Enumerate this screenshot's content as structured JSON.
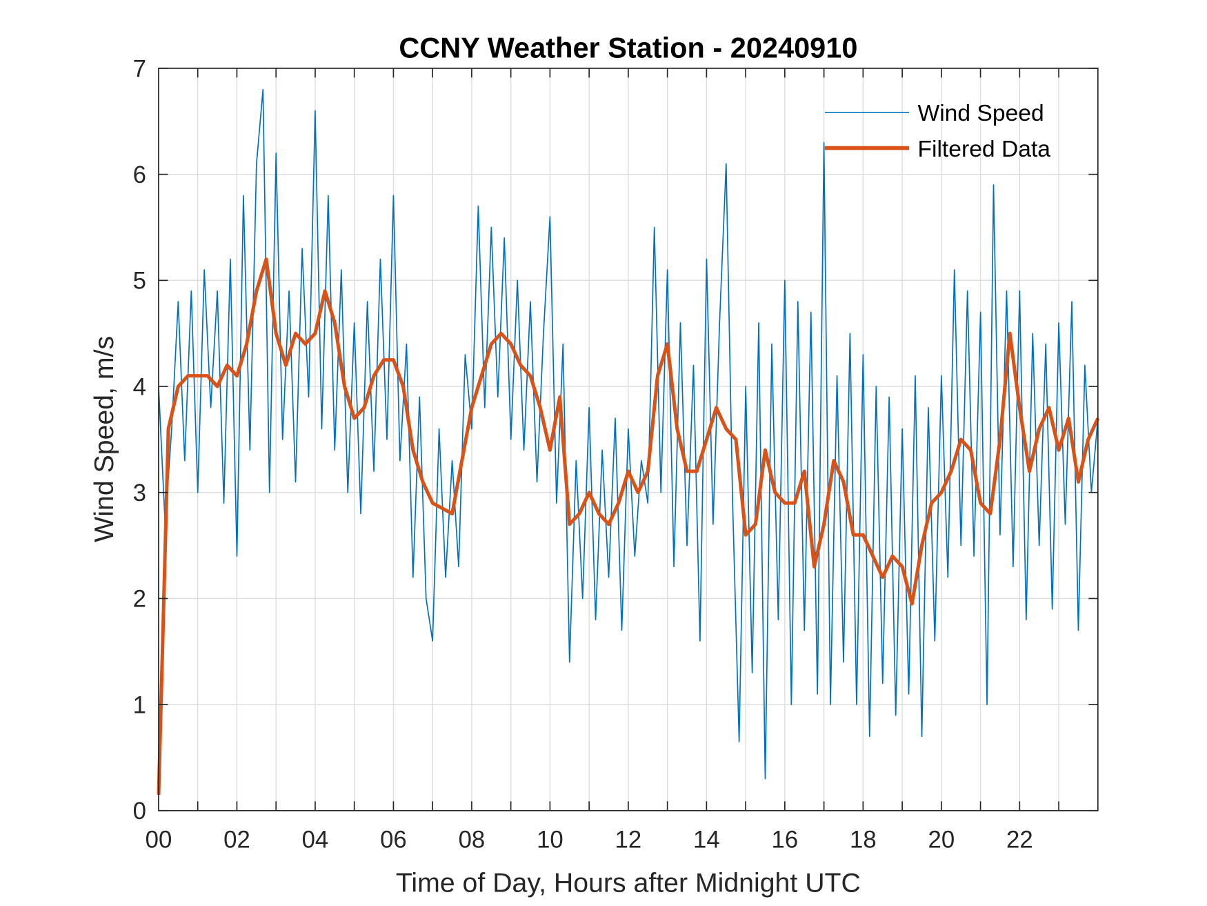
{
  "chart_data": {
    "type": "line",
    "title": "CCNY Weather Station - 20240910",
    "xlabel": "Time of Day, Hours after Midnight UTC",
    "ylabel": "Wind Speed, m/s",
    "xlim": [
      0,
      24
    ],
    "ylim": [
      0,
      7
    ],
    "grid": true,
    "legend_placement": "top-right",
    "xticks": [
      0,
      2,
      4,
      6,
      8,
      10,
      12,
      14,
      16,
      18,
      20,
      22
    ],
    "xtick_labels": [
      "00",
      "02",
      "04",
      "06",
      "08",
      "10",
      "12",
      "14",
      "16",
      "18",
      "20",
      "22"
    ],
    "yticks": [
      0,
      1,
      2,
      3,
      4,
      5,
      6,
      7
    ],
    "ytick_labels": [
      "0",
      "1",
      "2",
      "3",
      "4",
      "5",
      "6",
      "7"
    ],
    "series": [
      {
        "name": "Wind Speed",
        "color": "#0072BD",
        "x_step_hours": 0.1666667,
        "values": [
          4.0,
          2.7,
          3.6,
          4.8,
          3.3,
          4.9,
          3.0,
          5.1,
          3.8,
          4.9,
          2.9,
          5.2,
          2.4,
          5.8,
          3.4,
          6.1,
          6.8,
          3.0,
          6.2,
          3.5,
          4.9,
          3.1,
          5.3,
          3.9,
          6.6,
          3.6,
          5.8,
          3.4,
          5.1,
          3.0,
          4.6,
          2.8,
          4.8,
          3.2,
          5.2,
          3.5,
          5.8,
          3.3,
          4.4,
          2.2,
          3.9,
          2.0,
          1.6,
          3.6,
          2.2,
          3.3,
          2.3,
          4.3,
          3.6,
          5.7,
          3.8,
          5.5,
          3.9,
          5.4,
          3.5,
          5.0,
          3.4,
          4.8,
          3.1,
          4.5,
          5.6,
          2.9,
          4.4,
          1.4,
          3.3,
          2.0,
          3.8,
          1.8,
          3.4,
          2.2,
          3.7,
          1.7,
          3.6,
          2.4,
          3.3,
          2.9,
          5.5,
          3.0,
          5.1,
          2.3,
          4.6,
          2.5,
          4.2,
          1.6,
          5.2,
          2.7,
          4.6,
          6.1,
          2.9,
          0.65,
          4.0,
          1.3,
          4.6,
          0.3,
          4.4,
          1.8,
          5.0,
          1.0,
          4.8,
          1.7,
          4.7,
          1.1,
          6.3,
          1.0,
          4.1,
          1.4,
          4.5,
          1.0,
          4.3,
          0.7,
          4.0,
          1.2,
          3.9,
          0.9,
          3.6,
          1.1,
          4.1,
          0.7,
          3.8,
          1.6,
          4.1,
          2.2,
          5.1,
          2.5,
          4.9,
          2.4,
          4.7,
          1.0,
          5.9,
          2.6,
          4.9,
          2.3,
          4.9,
          1.8,
          4.5,
          2.5,
          4.4,
          1.9,
          4.6,
          2.7,
          4.8,
          1.7,
          4.2,
          3.0,
          3.7
        ]
      },
      {
        "name": "Filtered Data",
        "color": "#D95319",
        "x_step_hours": 0.25,
        "values": [
          0.15,
          3.6,
          4.0,
          4.1,
          4.1,
          4.1,
          4.0,
          4.2,
          4.1,
          4.4,
          4.9,
          5.2,
          4.5,
          4.2,
          4.5,
          4.4,
          4.5,
          4.9,
          4.6,
          4.0,
          3.7,
          3.8,
          4.1,
          4.25,
          4.25,
          4.0,
          3.4,
          3.1,
          2.9,
          2.85,
          2.8,
          3.3,
          3.8,
          4.1,
          4.4,
          4.5,
          4.4,
          4.2,
          4.1,
          3.8,
          3.4,
          3.9,
          2.7,
          2.8,
          3.0,
          2.8,
          2.7,
          2.9,
          3.2,
          3.0,
          3.2,
          4.1,
          4.4,
          3.6,
          3.2,
          3.2,
          3.5,
          3.8,
          3.6,
          3.5,
          2.6,
          2.7,
          3.4,
          3.0,
          2.9,
          2.9,
          3.2,
          2.3,
          2.7,
          3.3,
          3.1,
          2.6,
          2.6,
          2.4,
          2.2,
          2.4,
          2.3,
          1.95,
          2.5,
          2.9,
          3.0,
          3.2,
          3.5,
          3.4,
          2.9,
          2.8,
          3.5,
          4.5,
          3.8,
          3.2,
          3.6,
          3.8,
          3.4,
          3.7,
          3.1,
          3.5,
          3.7
        ]
      }
    ]
  }
}
